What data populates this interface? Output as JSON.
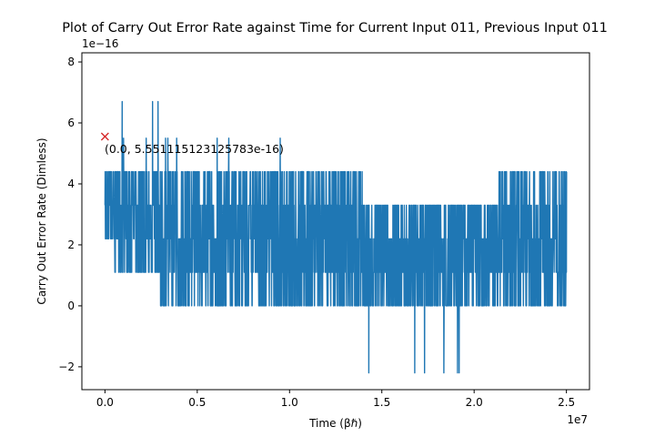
{
  "chart_data": {
    "type": "line",
    "title": "Plot of Carry Out Error Rate against Time for Current Input 011, Previous Input 011",
    "xlabel": "Time (βℏ)",
    "ylabel": "Carry Out Error Rate (Dimless)",
    "x_offset_label": "1e7",
    "y_offset_label": "1e−16",
    "xlim": [
      -0.125,
      2.625
    ],
    "ylim": [
      -2.75,
      8.3
    ],
    "x_ticks": [
      0,
      0.5,
      1.0,
      1.5,
      2.0,
      2.5
    ],
    "x_tick_labels": [
      "0.0",
      "0.5",
      "1.0",
      "1.5",
      "2.0",
      "2.5"
    ],
    "y_ticks": [
      -2,
      0,
      2,
      4,
      6,
      8
    ],
    "y_tick_labels": [
      "−2",
      "0",
      "2",
      "4",
      "6",
      "8"
    ],
    "series": [
      {
        "name": "Carry Out Error Rate",
        "color": "#1f77b4",
        "x_range": [
          0,
          2.5
        ],
        "segments": [
          {
            "x": [
              0,
              0.05
            ],
            "levels": [
              3.3,
              4.4,
              5.5,
              6.7,
              7.8,
              2.2
            ]
          },
          {
            "x": [
              0.05,
              0.2
            ],
            "levels": [
              2.2,
              3.3,
              4.4,
              5.5,
              6.7,
              1.1
            ]
          },
          {
            "x": [
              0.2,
              0.3
            ],
            "levels": [
              1.1,
              2.2,
              3.3,
              4.4,
              5.5,
              6.7
            ]
          },
          {
            "x": [
              0.3,
              1.1
            ],
            "levels": [
              0,
              1.1,
              2.2,
              3.3,
              4.4,
              5.5
            ]
          },
          {
            "x": [
              1.1,
              1.4
            ],
            "levels": [
              0,
              1.1,
              2.2,
              3.3,
              4.4
            ]
          },
          {
            "x": [
              1.4,
              2.13
            ],
            "levels": [
              0,
              1.1,
              2.2,
              3.3,
              -2.2
            ]
          },
          {
            "x": [
              2.13,
              2.5
            ],
            "levels": [
              0,
              1.1,
              2.2,
              3.3,
              4.4
            ]
          }
        ]
      }
    ],
    "marker": {
      "x": 0.0,
      "y": 5.551115123125783,
      "symbol": "x",
      "color": "#d62728"
    },
    "annotation": "(0.0, 5.551115123125783e-16)"
  }
}
